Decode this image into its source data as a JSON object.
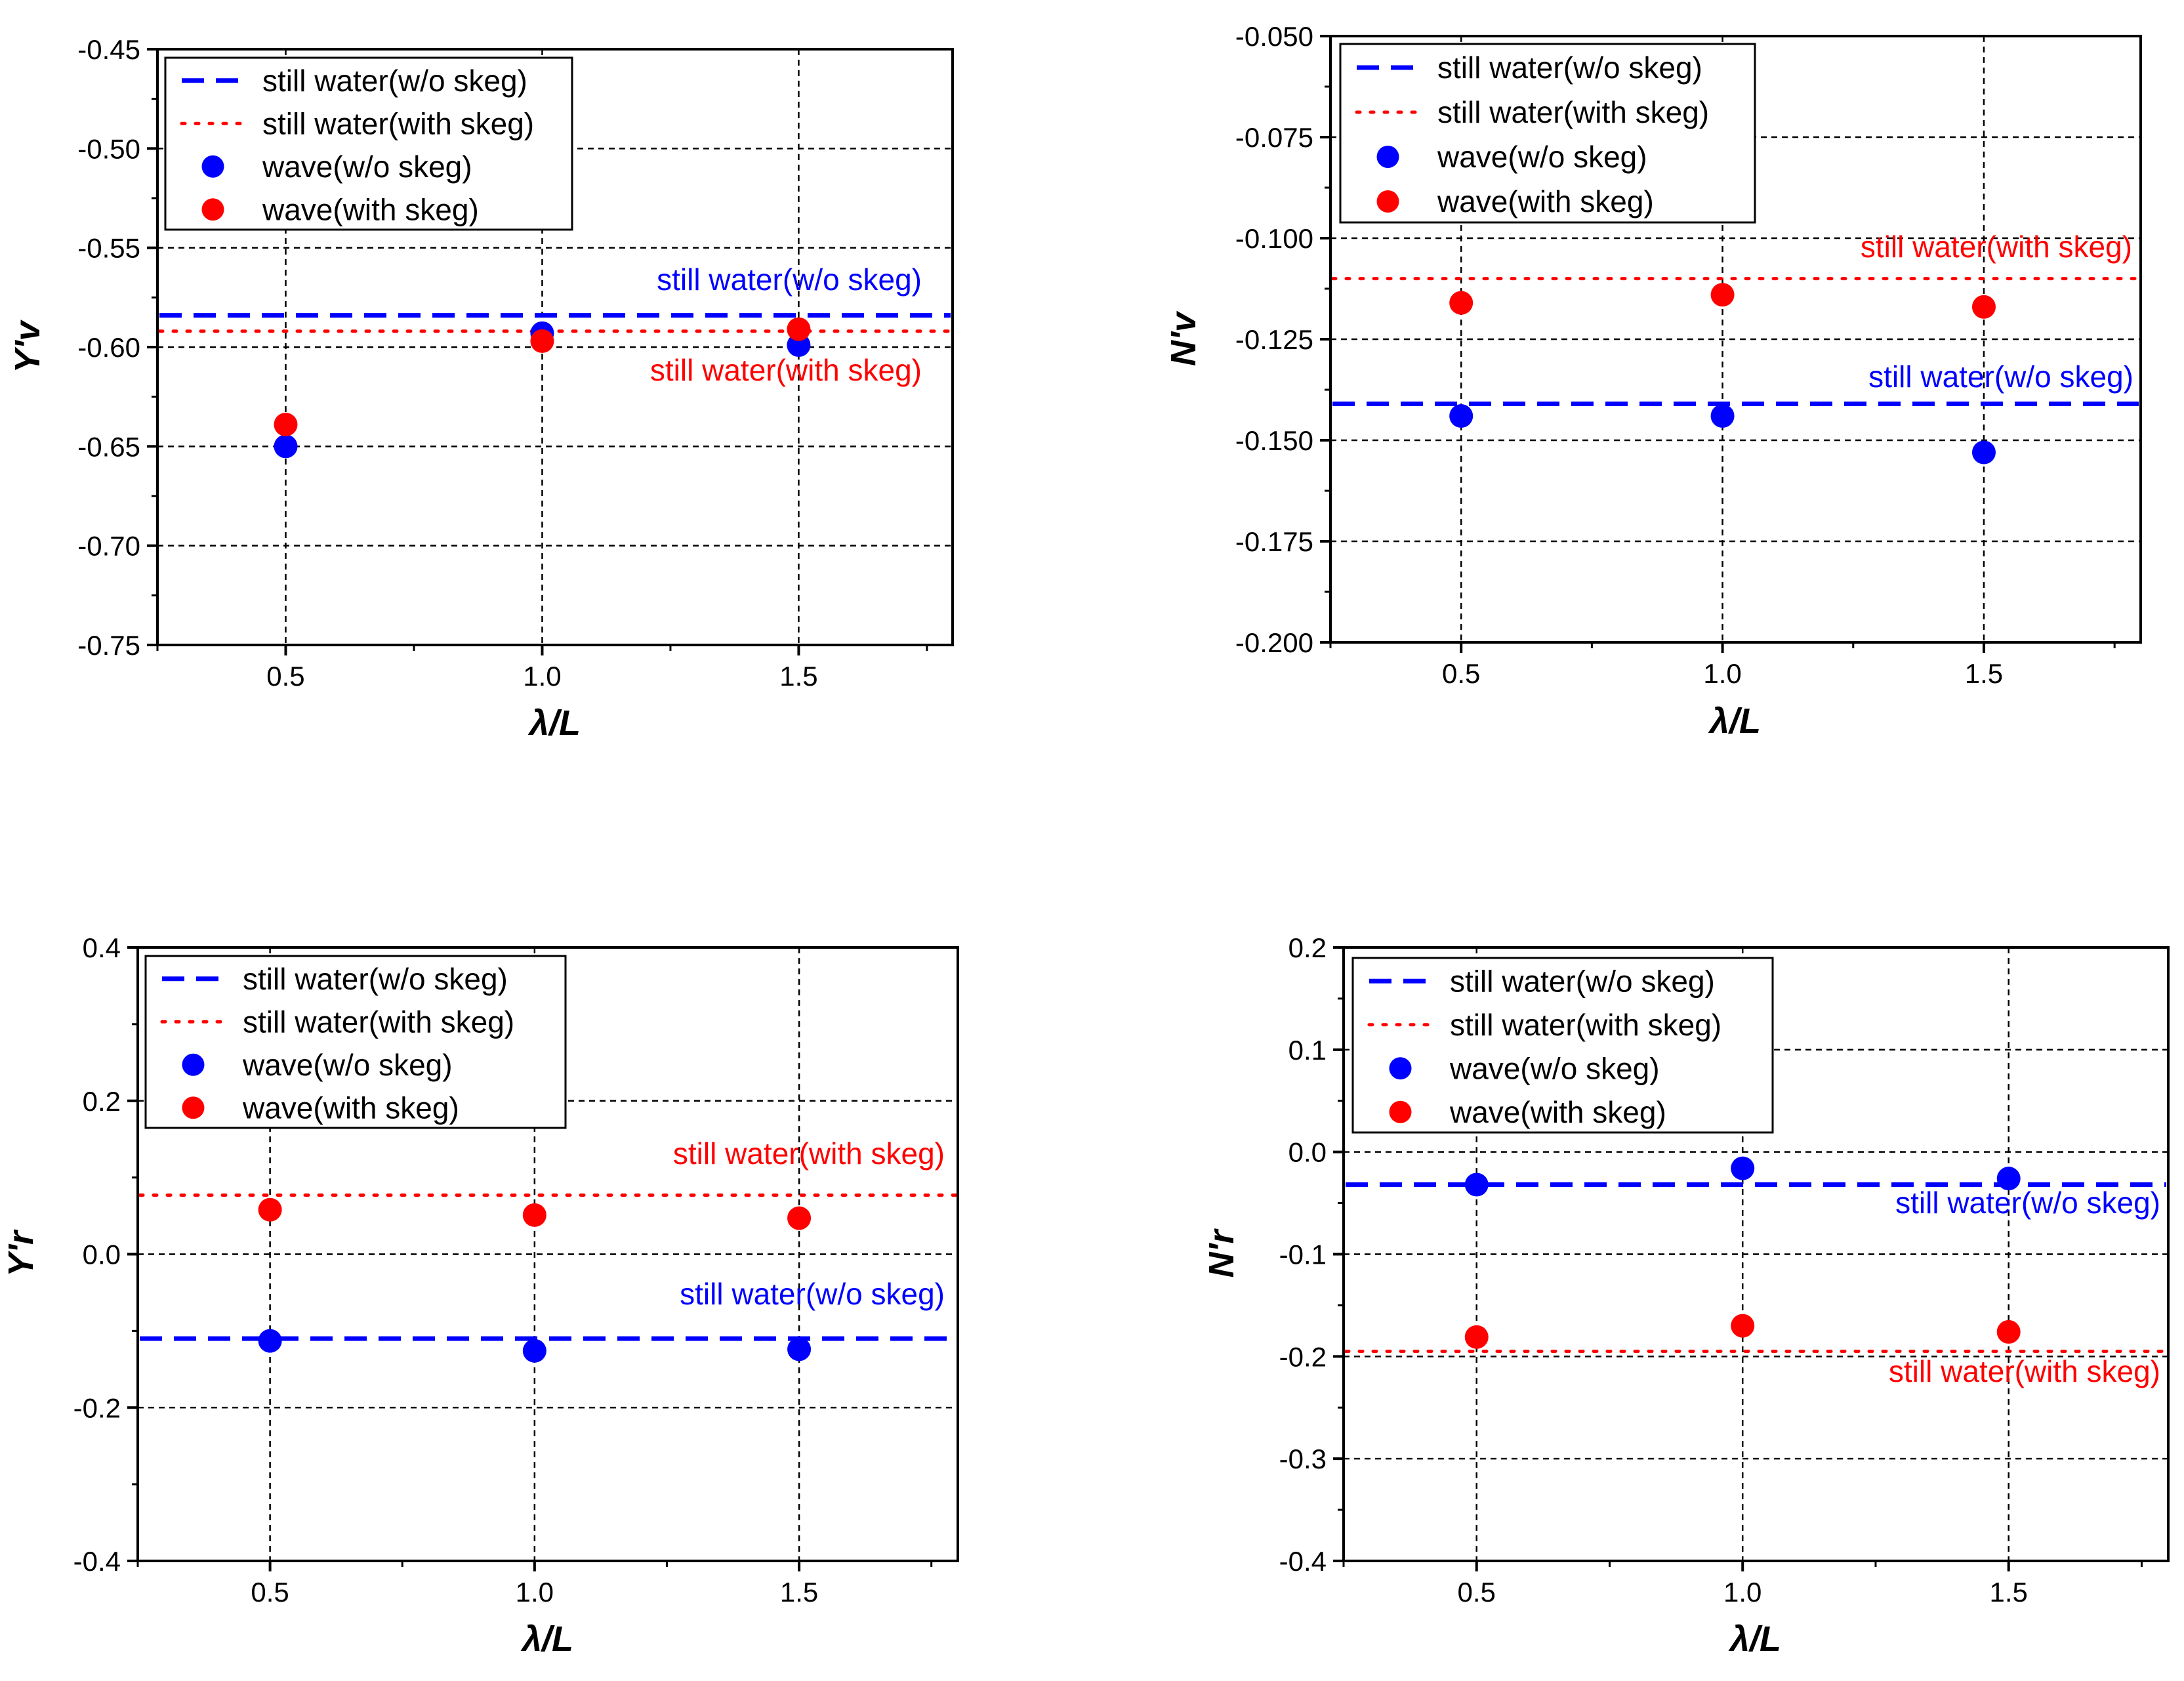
{
  "colors": {
    "blue": "#0000ff",
    "red": "#ff0000",
    "grid": "#000000",
    "axis": "#000000"
  },
  "legend": {
    "entries": [
      {
        "label": "still water(w/o skeg)",
        "marker": "dash-line",
        "color": "#0000ff"
      },
      {
        "label": "still water(with skeg)",
        "marker": "dot-line",
        "color": "#ff0000"
      },
      {
        "label": "wave(w/o skeg)",
        "marker": "circle",
        "color": "#0000ff"
      },
      {
        "label": "wave(with skeg)",
        "marker": "circle",
        "color": "#ff0000"
      }
    ]
  },
  "chart_data": [
    {
      "id": "yv",
      "type": "scatter",
      "xlabel": "λ/L",
      "ylabel": "Y'v",
      "xlim": [
        0.25,
        1.8
      ],
      "ylim": [
        -0.75,
        -0.45
      ],
      "xticks": [
        0.5,
        1.0,
        1.5
      ],
      "xtick_labels": [
        "0.5",
        "1.0",
        "1.5"
      ],
      "yticks": [
        -0.75,
        -0.7,
        -0.65,
        -0.6,
        -0.55,
        -0.5,
        -0.45
      ],
      "ytick_labels": [
        "-0.75",
        "-0.70",
        "-0.65",
        "-0.60",
        "-0.55",
        "-0.50",
        "-0.45"
      ],
      "grid": true,
      "hlines": [
        {
          "name": "still water(w/o skeg)",
          "value": -0.584,
          "style": "dash",
          "color": "#0000ff"
        },
        {
          "name": "still water(with skeg)",
          "value": -0.592,
          "style": "dot",
          "color": "#ff0000"
        }
      ],
      "series": [
        {
          "name": "wave(w/o skeg)",
          "color": "#0000ff",
          "x": [
            0.5,
            1.0,
            1.5
          ],
          "values": [
            -0.65,
            -0.593,
            -0.599
          ]
        },
        {
          "name": "wave(with skeg)",
          "color": "#ff0000",
          "x": [
            0.5,
            1.0,
            1.5
          ],
          "values": [
            -0.639,
            -0.597,
            -0.591
          ]
        }
      ],
      "annotations": [
        {
          "text": "still water(w/o skeg)",
          "color": "#0000ff"
        },
        {
          "text": "still water(with skeg)",
          "color": "#ff0000"
        }
      ]
    },
    {
      "id": "nv",
      "type": "scatter",
      "xlabel": "λ/L",
      "ylabel": "N'v",
      "xlim": [
        0.25,
        1.8
      ],
      "ylim": [
        -0.2,
        -0.05
      ],
      "xticks": [
        0.5,
        1.0,
        1.5
      ],
      "xtick_labels": [
        "0.5",
        "1.0",
        "1.5"
      ],
      "yticks": [
        -0.2,
        -0.175,
        -0.15,
        -0.125,
        -0.1,
        -0.075,
        -0.05
      ],
      "ytick_labels": [
        "-0.200",
        "-0.175",
        "-0.150",
        "-0.125",
        "-0.100",
        "-0.075",
        "-0.050"
      ],
      "grid": true,
      "hlines": [
        {
          "name": "still water(w/o skeg)",
          "value": -0.141,
          "style": "dash",
          "color": "#0000ff"
        },
        {
          "name": "still water(with skeg)",
          "value": -0.11,
          "style": "dot",
          "color": "#ff0000"
        }
      ],
      "series": [
        {
          "name": "wave(w/o skeg)",
          "color": "#0000ff",
          "x": [
            0.5,
            1.0,
            1.5
          ],
          "values": [
            -0.144,
            -0.144,
            -0.153
          ]
        },
        {
          "name": "wave(with skeg)",
          "color": "#ff0000",
          "x": [
            0.5,
            1.0,
            1.5
          ],
          "values": [
            -0.116,
            -0.114,
            -0.117
          ]
        }
      ],
      "annotations": [
        {
          "text": "still water(with skeg)",
          "color": "#ff0000"
        },
        {
          "text": "still water(w/o skeg)",
          "color": "#0000ff"
        }
      ]
    },
    {
      "id": "yr",
      "type": "scatter",
      "xlabel": "λ/L",
      "ylabel": "Y'r",
      "xlim": [
        0.25,
        1.8
      ],
      "ylim": [
        -0.4,
        0.4
      ],
      "xticks": [
        0.5,
        1.0,
        1.5
      ],
      "xtick_labels": [
        "0.5",
        "1.0",
        "1.5"
      ],
      "yticks": [
        -0.4,
        -0.2,
        0.0,
        0.2,
        0.4
      ],
      "ytick_labels": [
        "-0.4",
        "-0.2",
        "0.0",
        "0.2",
        "0.4"
      ],
      "grid": true,
      "hlines": [
        {
          "name": "still water(w/o skeg)",
          "value": -0.11,
          "style": "dash",
          "color": "#0000ff"
        },
        {
          "name": "still water(with skeg)",
          "value": 0.077,
          "style": "dot",
          "color": "#ff0000"
        }
      ],
      "series": [
        {
          "name": "wave(w/o skeg)",
          "color": "#0000ff",
          "x": [
            0.5,
            1.0,
            1.5
          ],
          "values": [
            -0.113,
            -0.126,
            -0.124
          ]
        },
        {
          "name": "wave(with skeg)",
          "color": "#ff0000",
          "x": [
            0.5,
            1.0,
            1.5
          ],
          "values": [
            0.058,
            0.051,
            0.047
          ]
        }
      ],
      "annotations": [
        {
          "text": "still water(with skeg)",
          "color": "#ff0000"
        },
        {
          "text": "still water(w/o skeg)",
          "color": "#0000ff"
        }
      ]
    },
    {
      "id": "nr",
      "type": "scatter",
      "xlabel": "λ/L",
      "ylabel": "N'r",
      "xlim": [
        0.25,
        1.8
      ],
      "ylim": [
        -0.4,
        0.2
      ],
      "xticks": [
        0.5,
        1.0,
        1.5
      ],
      "xtick_labels": [
        "0.5",
        "1.0",
        "1.5"
      ],
      "yticks": [
        -0.4,
        -0.3,
        -0.2,
        -0.1,
        0.0,
        0.1,
        0.2
      ],
      "ytick_labels": [
        "-0.4",
        "-0.3",
        "-0.2",
        "-0.1",
        "0.0",
        "0.1",
        "0.2"
      ],
      "grid": true,
      "hlines": [
        {
          "name": "still water(w/o skeg)",
          "value": -0.032,
          "style": "dash",
          "color": "#0000ff"
        },
        {
          "name": "still water(with skeg)",
          "value": -0.195,
          "style": "dot",
          "color": "#ff0000"
        }
      ],
      "series": [
        {
          "name": "wave(w/o skeg)",
          "color": "#0000ff",
          "x": [
            0.5,
            1.0,
            1.5
          ],
          "values": [
            -0.032,
            -0.016,
            -0.026
          ]
        },
        {
          "name": "wave(with skeg)",
          "color": "#ff0000",
          "x": [
            0.5,
            1.0,
            1.5
          ],
          "values": [
            -0.181,
            -0.17,
            -0.176
          ]
        }
      ],
      "annotations": [
        {
          "text": "still water(w/o skeg)",
          "color": "#0000ff"
        },
        {
          "text": "still water(with skeg)",
          "color": "#ff0000"
        }
      ]
    }
  ]
}
